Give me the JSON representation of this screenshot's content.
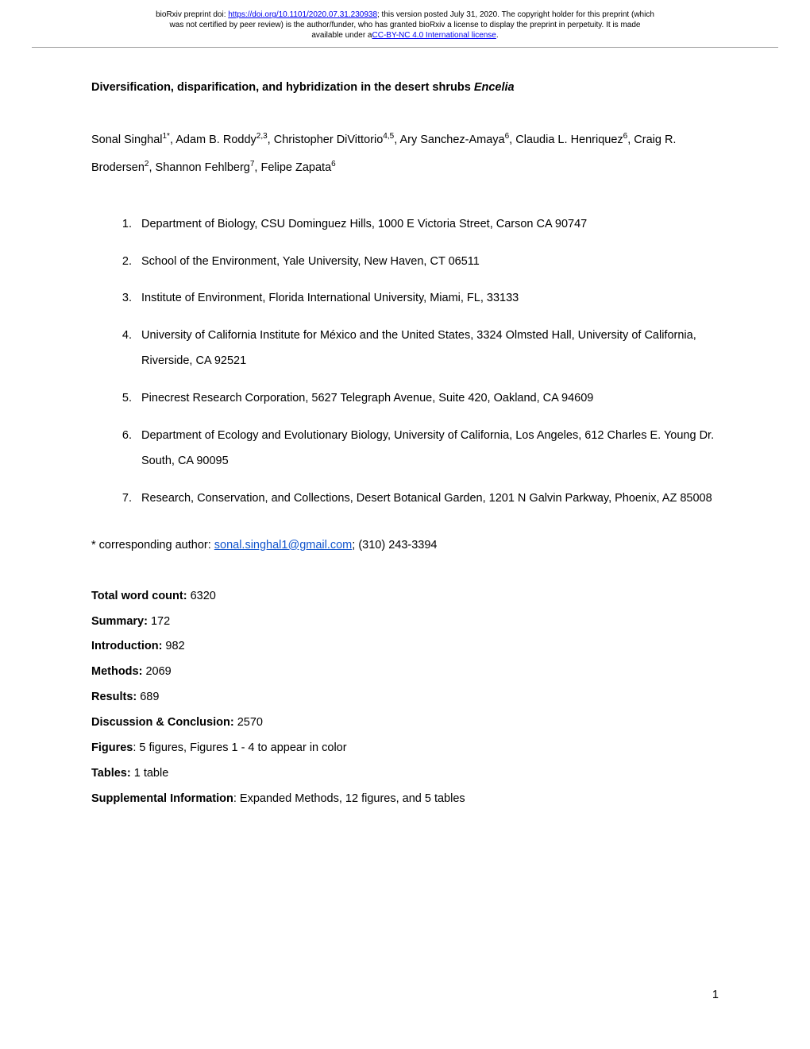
{
  "header": {
    "line1_prefix": "bioRxiv preprint doi: ",
    "doi_url": "https://doi.org/10.1101/2020.07.31.230938",
    "line1_suffix": "; this version posted July 31, 2020. The copyright holder for this preprint (which",
    "line2": "was not certified by peer review) is the author/funder, who has granted bioRxiv a license to display the preprint in perpetuity. It is made",
    "line3_prefix": "available under a",
    "license_text": "CC-BY-NC 4.0 International license",
    "line3_suffix": "."
  },
  "title": {
    "main": "Diversification, disparification, and hybridization in the desert shrubs ",
    "italic": "Encelia"
  },
  "authors": {
    "line1": {
      "a1_name": "Sonal Singhal",
      "a1_sup": "1*",
      "a2_name": ", Adam B. Roddy",
      "a2_sup": "2,3",
      "a3_name": ", Christopher DiVittorio",
      "a3_sup": "4,5",
      "a4_name": ", Ary Sanchez-Amaya",
      "a4_sup": "6",
      "a5_name": ", Claudia L."
    },
    "line2": {
      "a6_name": "Henriquez",
      "a6_sup": "6",
      "a7_name": ", Craig R. Brodersen",
      "a7_sup": "2",
      "a8_name": ", Shannon Fehlberg",
      "a8_sup": "7",
      "a9_name": ", Felipe Zapata",
      "a9_sup": "6"
    }
  },
  "affiliations": [
    "Department of Biology, CSU Dominguez Hills, 1000 E Victoria Street, Carson CA 90747",
    "School of the Environment, Yale University, New Haven, CT 06511",
    "Institute of Environment, Florida International University, Miami, FL, 33133",
    "University of California Institute for México and the United States, 3324 Olmsted Hall, University of California, Riverside, CA 92521",
    "Pinecrest Research Corporation, 5627 Telegraph Avenue, Suite 420, Oakland, CA 94609",
    "Department of Ecology and Evolutionary Biology, University of California, Los Angeles, 612 Charles E. Young Dr. South, CA 90095",
    "Research, Conservation, and Collections, Desert Botanical Garden, 1201 N Galvin Parkway, Phoenix, AZ 85008"
  ],
  "corresponding": {
    "prefix": "* corresponding author: ",
    "email": "sonal.singhal1@gmail.com",
    "suffix": "; (310) 243-3394"
  },
  "counts": [
    {
      "label": "Total word count:",
      "value": " 6320"
    },
    {
      "label": "Summary:",
      "value": " 172"
    },
    {
      "label": "Introduction:",
      "value": " 982"
    },
    {
      "label": "Methods:",
      "value": " 2069"
    },
    {
      "label": "Results:",
      "value": " 689"
    },
    {
      "label": "Discussion & Conclusion:",
      "value": " 2570"
    },
    {
      "label": "Figures",
      "value": ": 5 figures, Figures 1 - 4 to appear in color"
    },
    {
      "label": "Tables:",
      "value": " 1 table"
    },
    {
      "label": "Supplemental Information",
      "value": ": Expanded Methods, 12 figures, and 5 tables"
    }
  ],
  "page_number": "1"
}
